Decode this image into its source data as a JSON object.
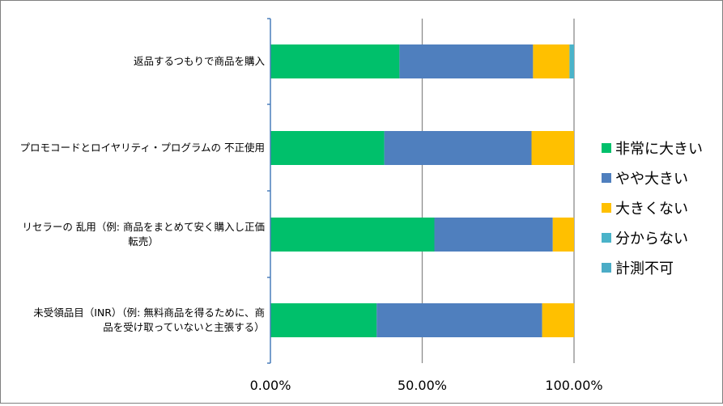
{
  "chart_data": {
    "type": "bar",
    "orientation": "horizontal",
    "stacked": true,
    "categories": [
      "返品するつもりで商品を購入",
      "プロモコードとロイヤリティ・プログラムの不正使用",
      "リセラーの乱用（例: 商品をまとめて安く購入し正価転売）",
      "未受領品目（INR）（例: 無料商品を得るために、商品を受け取っていないと主張する）"
    ],
    "category_lines": [
      [
        "返品するつもりで商品を購入"
      ],
      [
        "プロモコードとロイヤリティ・プログラムの 不正使用"
      ],
      [
        "リセラーの 乱用（例: 商品をまとめて安く購入し正価",
        "転売）"
      ],
      [
        "未受領品目（INR）（例: 無料商品を得るために、商",
        "品を受け取っていないと主張する）"
      ]
    ],
    "series": [
      {
        "name": "非常に大きい",
        "color": "#00c06b",
        "values": [
          0.425,
          0.375,
          0.54,
          0.35
        ]
      },
      {
        "name": "やや大きい",
        "color": "#4f7fbe",
        "values": [
          0.44,
          0.485,
          0.39,
          0.545
        ]
      },
      {
        "name": "大きくない",
        "color": "#ffc000",
        "values": [
          0.12,
          0.14,
          0.07,
          0.105
        ]
      },
      {
        "name": "分からない",
        "color": "#4ab3c9",
        "values": [
          0.015,
          0.0,
          0.0,
          0.0
        ]
      },
      {
        "name": "計測不可",
        "color": "#4bacc6",
        "values": [
          0.0,
          0.0,
          0.0,
          0.0
        ]
      }
    ],
    "xlim": [
      0,
      1
    ],
    "x_ticks": [
      "0.00%",
      "50.00%",
      "100.00%"
    ],
    "grid": true,
    "legend_position": "right"
  }
}
